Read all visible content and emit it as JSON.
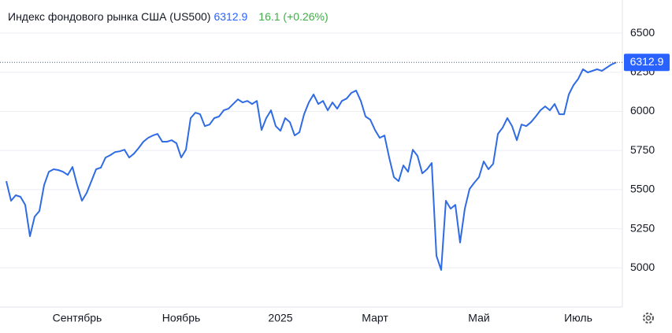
{
  "chart_data": {
    "type": "line",
    "title": "Индекс фондового рынка США (US500)",
    "change": "16.1 (+0.26%)",
    "categories": [
      null,
      null,
      null,
      null,
      null,
      null,
      null,
      null,
      null,
      null,
      null,
      null,
      null,
      null,
      null,
      "Сентябрь",
      null,
      null,
      null,
      null,
      null,
      null,
      null,
      null,
      null,
      null,
      null,
      null,
      null,
      null,
      null,
      null,
      null,
      null,
      null,
      null,
      null,
      "Ноябрь",
      null,
      null,
      null,
      null,
      null,
      null,
      null,
      null,
      null,
      null,
      null,
      null,
      null,
      null,
      null,
      null,
      null,
      null,
      null,
      null,
      "2025",
      null,
      null,
      null,
      null,
      null,
      null,
      null,
      null,
      null,
      null,
      null,
      null,
      null,
      null,
      null,
      null,
      null,
      null,
      null,
      "Март",
      null,
      null,
      null,
      null,
      null,
      null,
      null,
      null,
      null,
      null,
      null,
      null,
      null,
      null,
      null,
      null,
      null,
      null,
      null,
      null,
      null,
      "Май",
      null,
      null,
      null,
      null,
      null,
      null,
      null,
      null,
      null,
      null,
      null,
      null,
      null,
      null,
      null,
      null,
      null,
      null,
      null,
      null,
      "Июль",
      null,
      null,
      null,
      null,
      null,
      null,
      null,
      null
    ],
    "series": [
      {
        "name": "US500",
        "color": "#2f6be4",
        "values": [
          5554,
          5429,
          5464,
          5454,
          5403,
          5202,
          5328,
          5363,
          5529,
          5614,
          5630,
          5625,
          5614,
          5594,
          5645,
          5529,
          5429,
          5479,
          5554,
          5630,
          5640,
          5705,
          5720,
          5740,
          5745,
          5755,
          5705,
          5730,
          5766,
          5806,
          5831,
          5846,
          5856,
          5806,
          5806,
          5816,
          5796,
          5705,
          5755,
          5957,
          5992,
          5982,
          5906,
          5916,
          5957,
          5967,
          6007,
          6017,
          6047,
          6077,
          6057,
          6067,
          6047,
          6067,
          5881,
          5957,
          6007,
          5906,
          5876,
          5957,
          5931,
          5846,
          5866,
          5982,
          6057,
          6108,
          6047,
          6067,
          6007,
          6057,
          6017,
          6067,
          6082,
          6118,
          6133,
          6067,
          5967,
          5947,
          5881,
          5831,
          5846,
          5705,
          5580,
          5554,
          5655,
          5614,
          5755,
          5715,
          5604,
          5630,
          5670,
          5077,
          4987,
          5429,
          5378,
          5403,
          5162,
          5378,
          5504,
          5544,
          5580,
          5680,
          5630,
          5665,
          5856,
          5896,
          5957,
          5906,
          5816,
          5916,
          5906,
          5931,
          5967,
          6007,
          6032,
          6007,
          6047,
          5982,
          5982,
          6108,
          6168,
          6208,
          6269,
          6249,
          6259,
          6269,
          6259,
          6279,
          6299,
          6312.9
        ]
      }
    ],
    "ylim": [
      4750,
      6700
    ],
    "yticks": [
      5000,
      5250,
      5500,
      5750,
      6000,
      6250,
      6500
    ],
    "grid": true
  }
}
